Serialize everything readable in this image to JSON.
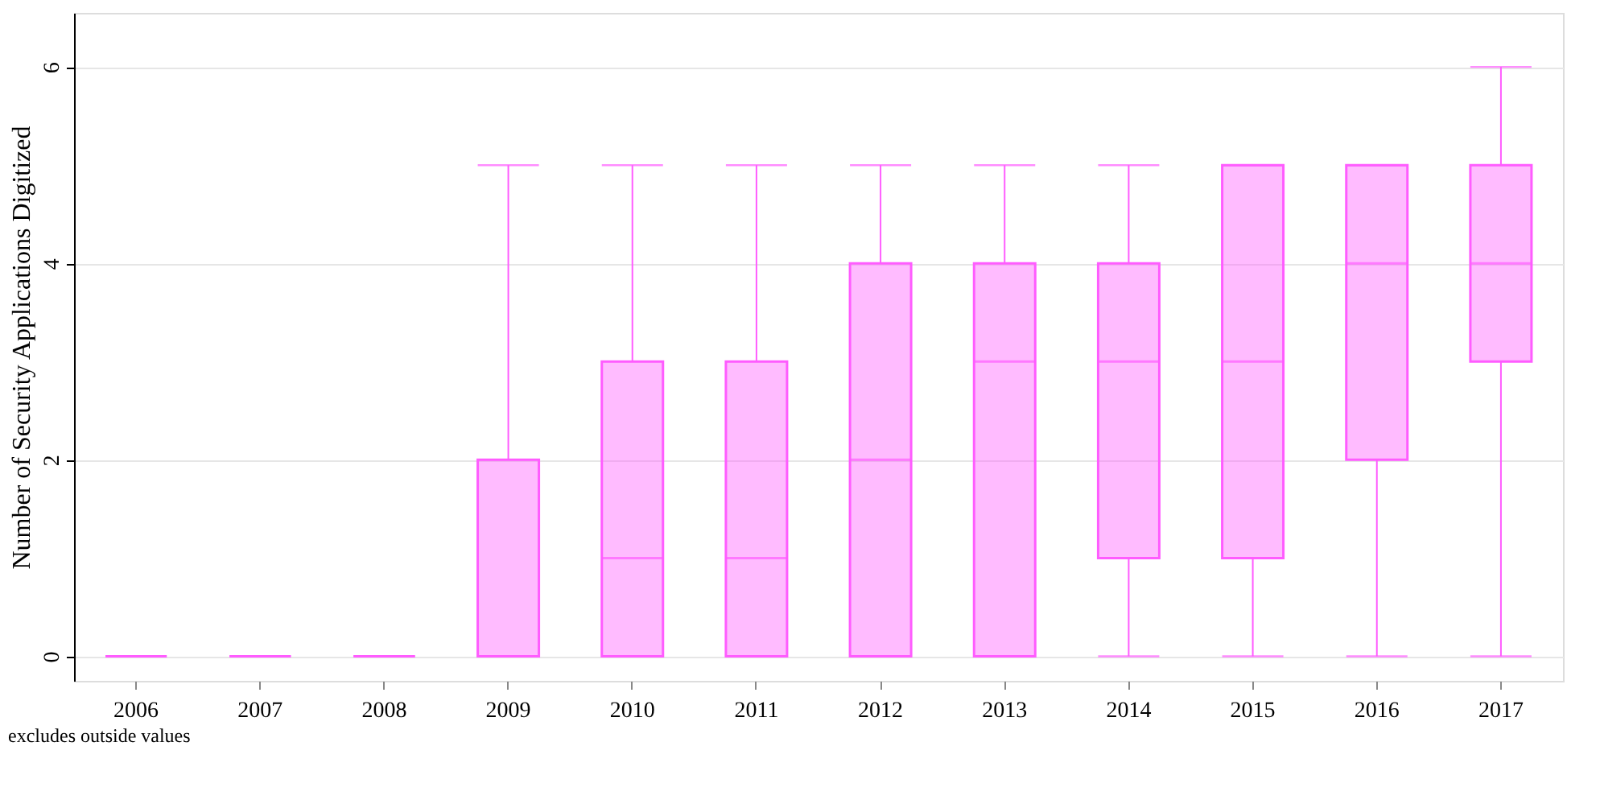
{
  "chart_data": {
    "type": "box",
    "ylabel": "Number of Security Applications Digitized",
    "categories": [
      "2006",
      "2007",
      "2008",
      "2009",
      "2010",
      "2011",
      "2012",
      "2013",
      "2014",
      "2015",
      "2016",
      "2017"
    ],
    "boxes": [
      {
        "low": 0,
        "q1": 0,
        "median": 0,
        "q3": 0,
        "high": 0
      },
      {
        "low": 0,
        "q1": 0,
        "median": 0,
        "q3": 0,
        "high": 0
      },
      {
        "low": 0,
        "q1": 0,
        "median": 0,
        "q3": 0,
        "high": 0
      },
      {
        "low": 0,
        "q1": 0,
        "median": 0,
        "q3": 2,
        "high": 5
      },
      {
        "low": 0,
        "q1": 0,
        "median": 1,
        "q3": 3,
        "high": 5
      },
      {
        "low": 0,
        "q1": 0,
        "median": 1,
        "q3": 3,
        "high": 5
      },
      {
        "low": 0,
        "q1": 0,
        "median": 2,
        "q3": 4,
        "high": 5
      },
      {
        "low": 0,
        "q1": 0,
        "median": 3,
        "q3": 4,
        "high": 5
      },
      {
        "low": 0,
        "q1": 1,
        "median": 3,
        "q3": 4,
        "high": 5
      },
      {
        "low": 0,
        "q1": 1,
        "median": 3,
        "q3": 5,
        "high": 5
      },
      {
        "low": 0,
        "q1": 2,
        "median": 4,
        "q3": 5,
        "high": 5
      },
      {
        "low": 0,
        "q1": 3,
        "median": 4,
        "q3": 5,
        "high": 6
      }
    ],
    "color": "#ff5cff",
    "ylim": [
      -0.25,
      6.55
    ],
    "yticks": [
      0,
      2,
      4,
      6
    ],
    "grid": "y",
    "annotations": [
      "excludes outside values"
    ]
  }
}
